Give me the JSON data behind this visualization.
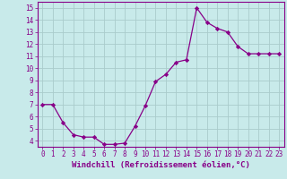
{
  "x": [
    0,
    1,
    2,
    3,
    4,
    5,
    6,
    7,
    8,
    9,
    10,
    11,
    12,
    13,
    14,
    15,
    16,
    17,
    18,
    19,
    20,
    21,
    22,
    23
  ],
  "y": [
    7.0,
    7.0,
    5.5,
    4.5,
    4.3,
    4.3,
    3.7,
    3.7,
    3.8,
    5.2,
    6.9,
    8.9,
    9.5,
    10.5,
    10.7,
    15.0,
    13.8,
    13.3,
    13.0,
    11.8,
    11.2,
    11.2,
    11.2,
    11.2
  ],
  "line_color": "#880088",
  "marker": "D",
  "marker_size": 2.2,
  "bg_color": "#c8eaea",
  "grid_color": "#aacccc",
  "xlabel": "Windchill (Refroidissement éolien,°C)",
  "xlabel_color": "#880088",
  "ylim": [
    3.5,
    15.5
  ],
  "xlim": [
    -0.5,
    23.5
  ],
  "yticks": [
    4,
    5,
    6,
    7,
    8,
    9,
    10,
    11,
    12,
    13,
    14,
    15
  ],
  "xticks": [
    0,
    1,
    2,
    3,
    4,
    5,
    6,
    7,
    8,
    9,
    10,
    11,
    12,
    13,
    14,
    15,
    16,
    17,
    18,
    19,
    20,
    21,
    22,
    23
  ],
  "tick_color": "#880088",
  "tick_labelsize": 5.5,
  "xlabel_fontsize": 6.5,
  "linewidth": 0.9
}
